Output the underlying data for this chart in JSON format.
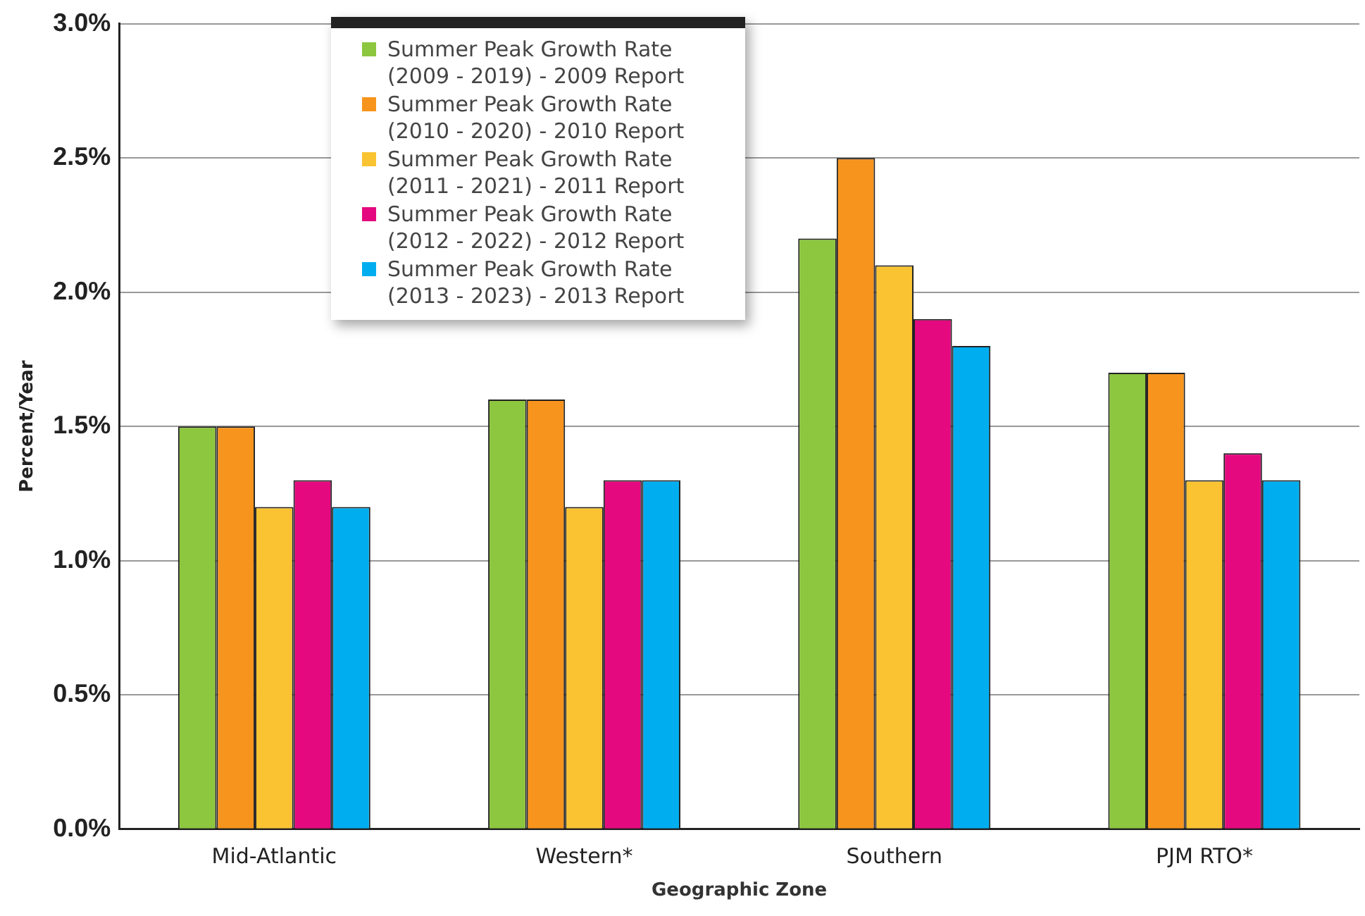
{
  "chart_data": {
    "type": "bar",
    "xlabel": "Geographic Zone",
    "ylabel": "Percent/Year",
    "categories": [
      "Mid-Atlantic",
      "Western*",
      "Southern",
      "PJM RTO*"
    ],
    "series": [
      {
        "name": "Summer Peak Growth Rate (2009 - 2019) - 2009 Report",
        "color": "#8dc63f",
        "values": [
          1.5,
          1.6,
          2.2,
          1.7
        ]
      },
      {
        "name": "Summer Peak Growth Rate (2010 - 2020) - 2010 Report",
        "color": "#f7941d",
        "values": [
          1.5,
          1.6,
          2.5,
          1.7
        ]
      },
      {
        "name": "Summer Peak Growth Rate (2011 - 2021) - 2011 Report",
        "color": "#f9c332",
        "values": [
          1.2,
          1.2,
          2.1,
          1.3
        ]
      },
      {
        "name": "Summer Peak Growth Rate (2012 - 2022) - 2012 Report",
        "color": "#e5097f",
        "values": [
          1.3,
          1.3,
          1.9,
          1.4
        ]
      },
      {
        "name": "Summer Peak Growth Rate (2013 - 2023) - 2013 Report",
        "color": "#00aeef",
        "values": [
          1.2,
          1.3,
          1.8,
          1.3
        ]
      }
    ],
    "ylim": [
      0,
      3
    ],
    "yticks": [
      {
        "value": 0,
        "label": "0.0%"
      },
      {
        "value": 0.5,
        "label": "0.5%"
      },
      {
        "value": 1,
        "label": "1.0%"
      },
      {
        "value": 1.5,
        "label": "1.5%"
      },
      {
        "value": 2,
        "label": "2.0%"
      },
      {
        "value": 2.5,
        "label": "2.5%"
      },
      {
        "value": 3,
        "label": "3.0%"
      }
    ],
    "grid": "y",
    "legend": "top"
  }
}
